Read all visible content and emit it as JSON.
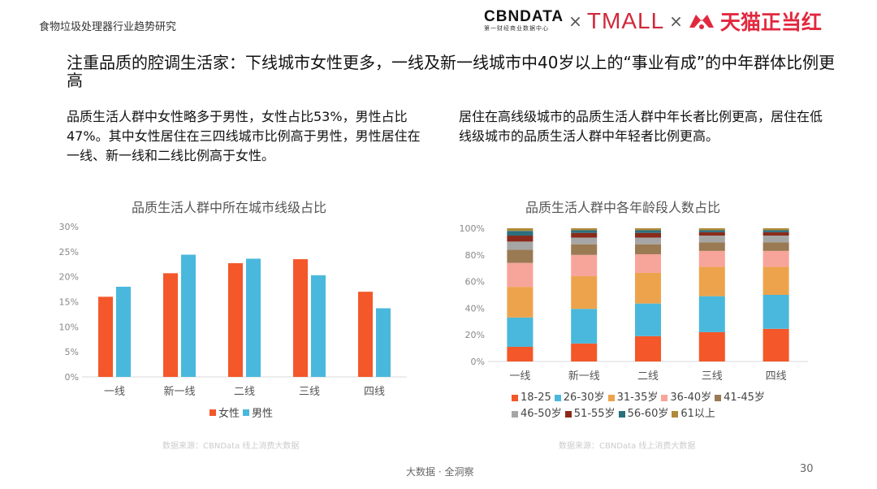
{
  "header": {
    "doc_title": "食物垃圾处理器行业趋势研究",
    "logos": {
      "cbndata": "CBNDATA",
      "cbndata_sub": "第一财经商业数据中心",
      "times": "×",
      "tmall": "TMALL",
      "tmall_red": "天猫正当红"
    }
  },
  "headline": "注重品质的腔调生活家：下线城市女性更多，一线及新一线城市中40岁以上的“事业有成”的中年群体比例更高",
  "desc_left": "品质生活人群中女性略多于男性，女性占比53%，男性占比47%。其中女性居住在三四线城市比例高于男性，男性居住在一线、新一线和二线比例高于女性。",
  "desc_right": "居住在高线级城市的品质生活人群中年长者比例更高，居住在低线级城市的品质生活人群中年轻者比例更高。",
  "footer": {
    "source_left": "数据来源：CBNData 线上消费大数据",
    "source_right": "数据来源：CBNData 线上消费大数据",
    "center": "大数据 · 全洞察",
    "page": "30"
  },
  "colors": {
    "orange": "#f4572a",
    "blue": "#4ab8dc"
  },
  "chart_data": [
    {
      "type": "bar",
      "title": "品质生活人群中所在城市线级占比",
      "categories": [
        "一线",
        "新一线",
        "二线",
        "三线",
        "四线"
      ],
      "yticks": [
        "0%",
        "5%",
        "10%",
        "15%",
        "20%",
        "25%",
        "30%"
      ],
      "ylim": [
        0,
        30
      ],
      "legend_position": "bottom",
      "series": [
        {
          "name": "女性",
          "color": "#f4572a",
          "values": [
            16.0,
            20.7,
            22.7,
            23.5,
            17.0
          ]
        },
        {
          "name": "男性",
          "color": "#4ab8dc",
          "values": [
            18.0,
            24.4,
            23.6,
            20.3,
            13.7
          ]
        }
      ]
    },
    {
      "type": "bar",
      "stacked": true,
      "title": "品质生活人群中各年龄段人数占比",
      "categories": [
        "一线",
        "新一线",
        "二线",
        "三线",
        "四线"
      ],
      "yticks": [
        "0%",
        "20%",
        "40%",
        "60%",
        "80%",
        "100%"
      ],
      "ylim": [
        0,
        100
      ],
      "legend_position": "bottom",
      "series": [
        {
          "name": "18-25",
          "color": "#f4572a",
          "values": [
            11,
            13.5,
            19,
            22,
            24.5
          ]
        },
        {
          "name": "26-30岁",
          "color": "#4ab8dc",
          "values": [
            22,
            26,
            24.5,
            27,
            25.5
          ]
        },
        {
          "name": "31-35岁",
          "color": "#eda34c",
          "values": [
            23,
            24.5,
            23,
            22,
            21
          ]
        },
        {
          "name": "36-40岁",
          "color": "#f7a49a",
          "values": [
            18,
            16,
            14,
            12,
            12
          ]
        },
        {
          "name": "41-45岁",
          "color": "#9a7a53",
          "values": [
            10,
            8,
            7.5,
            6.5,
            6.5
          ]
        },
        {
          "name": "46-50岁",
          "color": "#a6a6a6",
          "values": [
            6,
            5,
            5,
            5,
            5
          ]
        },
        {
          "name": "51-55岁",
          "color": "#8b2a1a",
          "values": [
            4.5,
            3.5,
            3.5,
            2.5,
            2.5
          ]
        },
        {
          "name": "56-60岁",
          "color": "#2a6f7e",
          "values": [
            3.5,
            2,
            2,
            1.5,
            1.5
          ]
        },
        {
          "name": "61以上",
          "color": "#b08a3a",
          "values": [
            2,
            1.5,
            1.5,
            1.5,
            1.5
          ]
        }
      ]
    }
  ]
}
